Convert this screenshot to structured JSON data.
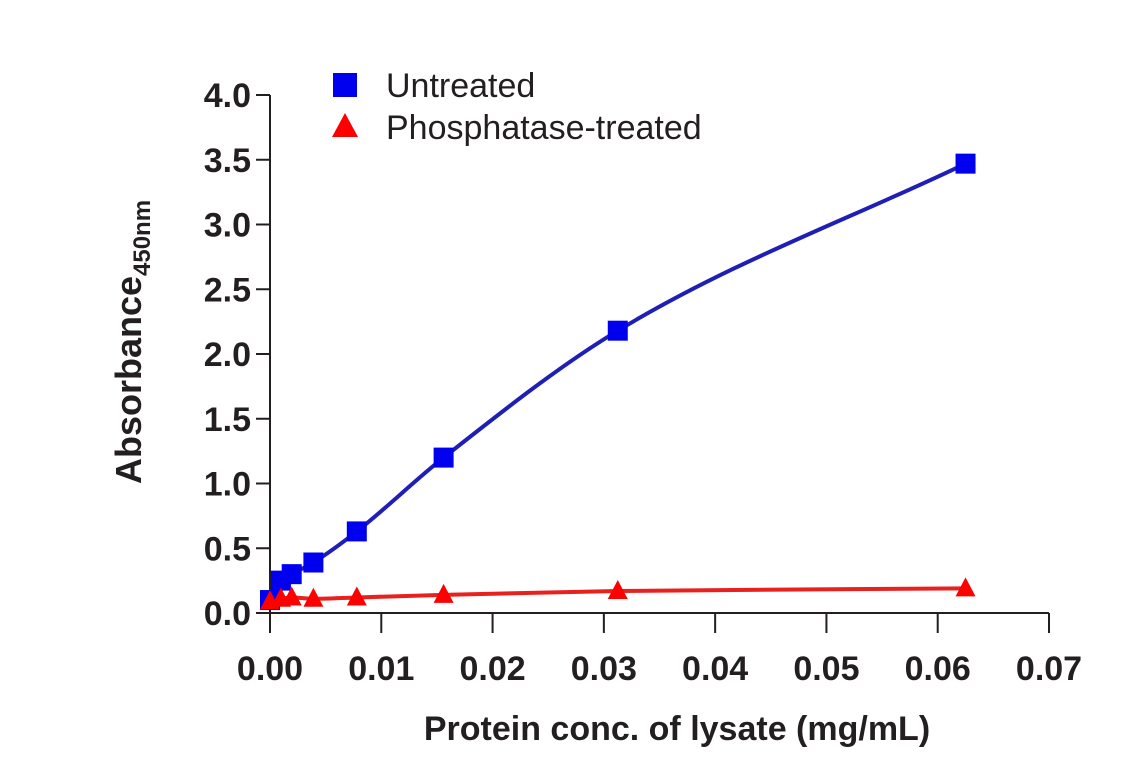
{
  "chart_data": {
    "type": "scatter",
    "xlabel": "Protein conc. of lysate (mg/mL)",
    "ylabel": "Absorbance",
    "ylabel_subscript": "450nm",
    "xlim": [
      0,
      0.07
    ],
    "ylim": [
      0,
      4.0
    ],
    "xticks": [
      "0.00",
      "0.01",
      "0.02",
      "0.03",
      "0.04",
      "0.05",
      "0.06",
      "0.07"
    ],
    "yticks": [
      "0.0",
      "0.5",
      "1.0",
      "1.5",
      "2.0",
      "2.5",
      "3.0",
      "3.5",
      "4.0"
    ],
    "grid": false,
    "legend_position": "top-left",
    "series": [
      {
        "name": "Untreated",
        "marker": "square",
        "color": "#0000ee",
        "line_color": "#1f1fb5",
        "x": [
          0.0,
          0.00098,
          0.00195,
          0.0039,
          0.0078,
          0.0156,
          0.03125,
          0.0625
        ],
        "y": [
          0.1,
          0.25,
          0.3,
          0.39,
          0.63,
          1.2,
          2.18,
          3.47
        ]
      },
      {
        "name": "Phosphatase-treated",
        "marker": "triangle",
        "color": "#ff0000",
        "line_color": "#e8201e",
        "x": [
          0.0,
          0.00098,
          0.00195,
          0.0039,
          0.0078,
          0.0156,
          0.03125,
          0.0625
        ],
        "y": [
          0.09,
          0.11,
          0.12,
          0.11,
          0.12,
          0.14,
          0.17,
          0.19
        ]
      }
    ]
  }
}
